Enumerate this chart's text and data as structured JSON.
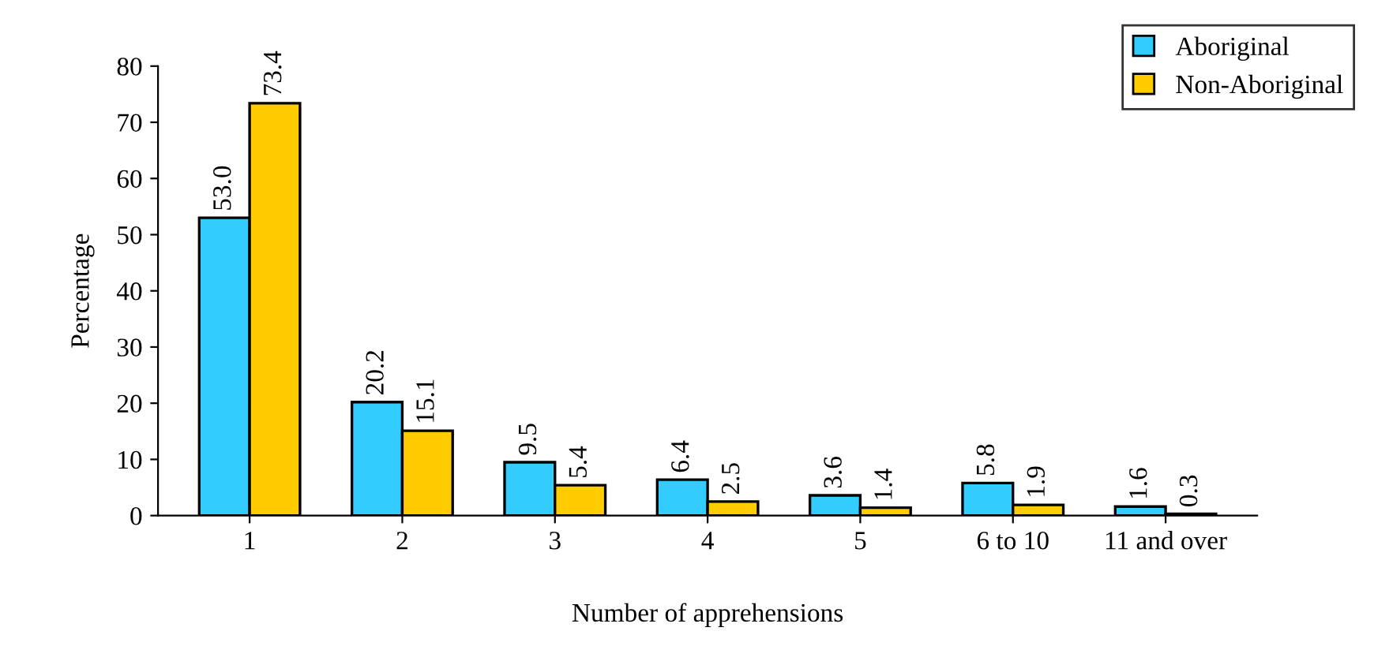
{
  "chart_data": {
    "type": "bar",
    "xlabel": "Number of apprehensions",
    "ylabel": "Percentage",
    "categories": [
      "1",
      "2",
      "3",
      "4",
      "5",
      "6 to 10",
      "11 and over"
    ],
    "series": [
      {
        "name": "Aboriginal",
        "color": "#33ccff",
        "values": [
          53.0,
          20.2,
          9.5,
          6.4,
          3.6,
          5.8,
          1.6
        ],
        "value_labels": [
          "53.0",
          "20.2",
          "9.5",
          "6.4",
          "3.6",
          "5.8",
          "1.6"
        ]
      },
      {
        "name": "Non-Aboriginal",
        "color": "#ffcc00",
        "values": [
          73.4,
          15.1,
          5.4,
          2.5,
          1.4,
          1.9,
          0.3
        ],
        "value_labels": [
          "73.4",
          "15.1",
          "5.4",
          "2.5",
          "1.4",
          "1.9",
          "0.3"
        ]
      }
    ],
    "ylim": [
      0,
      80
    ],
    "yticks": [
      0,
      10,
      20,
      30,
      40,
      50,
      60,
      70,
      80
    ],
    "grid": false,
    "legend": "top right"
  }
}
